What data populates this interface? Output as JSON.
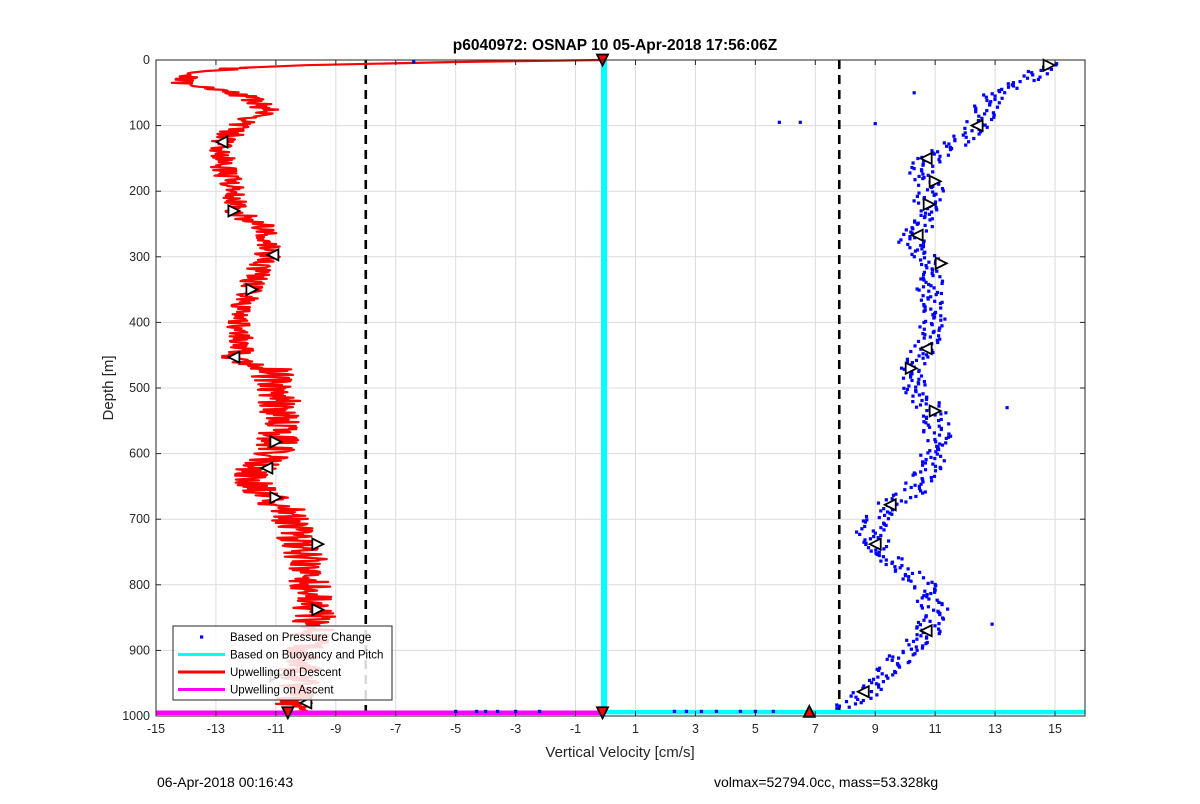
{
  "colors": {
    "pressure": "#0000ff",
    "buoyancy": "#00ffff",
    "descent": "#ff0000",
    "ascent": "#ff00ff",
    "grid": "#dcdcdc",
    "threshold": "#000000"
  },
  "chart_data": {
    "type": "scatter",
    "title": "p6040972: OSNAP 10 05-Apr-2018 17:56:06Z",
    "xlabel": "Vertical Velocity [cm/s]",
    "ylabel": "Depth [m]",
    "xlim": [
      -15,
      16
    ],
    "ylim": [
      1000,
      0
    ],
    "y_reversed": true,
    "grid": true,
    "xticks": [
      -15,
      -13,
      -11,
      -9,
      -7,
      -5,
      -3,
      -1,
      1,
      3,
      5,
      7,
      9,
      11,
      13,
      15
    ],
    "yticks": [
      0,
      100,
      200,
      300,
      400,
      500,
      600,
      700,
      800,
      900,
      1000
    ],
    "legend_placement": "bottom-left",
    "legend": [
      {
        "label": "Based on Pressure Change",
        "style": "marker",
        "color": "#0000ff"
      },
      {
        "label": "Based on Buoyancy and Pitch",
        "style": "line",
        "color": "#00ffff"
      },
      {
        "label": "Upwelling on Descent",
        "style": "line",
        "color": "#ff0000"
      },
      {
        "label": "Upwelling on Ascent",
        "style": "line",
        "color": "#ff00ff"
      }
    ],
    "thresholds_x": [
      -8,
      7.8
    ],
    "series": [
      {
        "name": "Based on Pressure Change",
        "kind": "scatter",
        "color": "#0000ff",
        "profile": [
          [
            0,
            15.2
          ],
          [
            10,
            14.8
          ],
          [
            30,
            14.0
          ],
          [
            60,
            12.8
          ],
          [
            100,
            12.4
          ],
          [
            130,
            11.6
          ],
          [
            150,
            10.8
          ],
          [
            170,
            10.5
          ],
          [
            190,
            10.9
          ],
          [
            220,
            10.7
          ],
          [
            250,
            10.6
          ],
          [
            280,
            10.2
          ],
          [
            310,
            11.0
          ],
          [
            350,
            10.8
          ],
          [
            400,
            10.9
          ],
          [
            440,
            10.6
          ],
          [
            470,
            10.2
          ],
          [
            500,
            10.3
          ],
          [
            540,
            11.0
          ],
          [
            580,
            11.1
          ],
          [
            620,
            10.8
          ],
          [
            660,
            10.2
          ],
          [
            680,
            9.3
          ],
          [
            720,
            8.8
          ],
          [
            760,
            9.5
          ],
          [
            800,
            10.6
          ],
          [
            840,
            11.0
          ],
          [
            870,
            10.8
          ],
          [
            900,
            10.1
          ],
          [
            940,
            9.2
          ],
          [
            970,
            8.6
          ],
          [
            990,
            7.8
          ]
        ],
        "scatter_width": 0.45,
        "outliers": [
          [
            95,
            5.8
          ],
          [
            95,
            6.5
          ],
          [
            97,
            9.0
          ],
          [
            50,
            10.3
          ],
          [
            530,
            13.4
          ],
          [
            860,
            12.9
          ],
          [
            3,
            -6.4
          ]
        ],
        "bottom_x": [
          -5.0,
          -4.3,
          -4.0,
          -3.6,
          -3.0,
          -2.2,
          2.3,
          2.7,
          3.2,
          3.7,
          4.5,
          5.0,
          5.6
        ]
      },
      {
        "name": "Based on Buoyancy and Pitch",
        "kind": "line",
        "color": "#00ffff",
        "points": [
          [
            -0.05,
            1
          ],
          [
            -0.05,
            997
          ]
        ]
      },
      {
        "name": "Upwelling on Descent",
        "kind": "line",
        "color": "#ff0000",
        "profile": [
          [
            0,
            -0.1
          ],
          [
            3,
            -5.0
          ],
          [
            8,
            -10.0
          ],
          [
            12,
            -12.2
          ],
          [
            20,
            -13.8
          ],
          [
            35,
            -14.2
          ],
          [
            55,
            -12.0
          ],
          [
            75,
            -11.3
          ],
          [
            100,
            -12.2
          ],
          [
            125,
            -12.8
          ],
          [
            160,
            -12.8
          ],
          [
            200,
            -12.4
          ],
          [
            230,
            -12.4
          ],
          [
            260,
            -11.2
          ],
          [
            300,
            -11.3
          ],
          [
            350,
            -11.9
          ],
          [
            400,
            -12.2
          ],
          [
            440,
            -12.1
          ],
          [
            455,
            -12.5
          ],
          [
            470,
            -11.2
          ],
          [
            520,
            -10.9
          ],
          [
            580,
            -10.9
          ],
          [
            620,
            -11.5
          ],
          [
            640,
            -12.0
          ],
          [
            680,
            -10.8
          ],
          [
            720,
            -10.4
          ],
          [
            760,
            -10.0
          ],
          [
            800,
            -9.9
          ],
          [
            840,
            -9.7
          ],
          [
            880,
            -9.8
          ],
          [
            920,
            -10.2
          ],
          [
            960,
            -10.3
          ],
          [
            995,
            -10.6
          ]
        ],
        "jitter": 0.45
      },
      {
        "name": "Upwelling on Ascent",
        "kind": "line",
        "color": "#ff00ff",
        "points": [
          [
            -15,
            995
          ],
          [
            16,
            995
          ]
        ]
      }
    ],
    "markers": {
      "descent": [
        [
          0,
          -0.1,
          "down"
        ],
        [
          125,
          -12.8,
          "left"
        ],
        [
          230,
          -12.4,
          "right"
        ],
        [
          297,
          -11.1,
          "left"
        ],
        [
          350,
          -11.8,
          "right"
        ],
        [
          453,
          -12.4,
          "left"
        ],
        [
          582,
          -11.0,
          "right"
        ],
        [
          622,
          -11.3,
          "left"
        ],
        [
          667,
          -11.0,
          "right"
        ],
        [
          738,
          -9.6,
          "right"
        ],
        [
          838,
          -9.6,
          "right"
        ],
        [
          938,
          -11.0,
          "right"
        ],
        [
          980,
          -10.0,
          "left"
        ],
        [
          995,
          -10.6,
          "down"
        ]
      ],
      "ascent": [
        [
          8,
          14.8,
          "right"
        ],
        [
          100,
          12.4,
          "left"
        ],
        [
          150,
          10.7,
          "left"
        ],
        [
          185,
          11.0,
          "right"
        ],
        [
          220,
          10.8,
          "right"
        ],
        [
          267,
          10.4,
          "left"
        ],
        [
          310,
          11.2,
          "right"
        ],
        [
          440,
          10.7,
          "left"
        ],
        [
          470,
          10.2,
          "right"
        ],
        [
          535,
          11.0,
          "right"
        ],
        [
          678,
          9.5,
          "left"
        ],
        [
          738,
          9.0,
          "left"
        ],
        [
          870,
          10.7,
          "left"
        ],
        [
          963,
          8.6,
          "left"
        ],
        [
          993,
          6.8,
          "up"
        ],
        [
          995,
          -0.1,
          "down"
        ]
      ]
    }
  },
  "footer": {
    "left": "06-Apr-2018 00:16:43",
    "right": "volmax=52794.0cc, mass=53.328kg"
  }
}
